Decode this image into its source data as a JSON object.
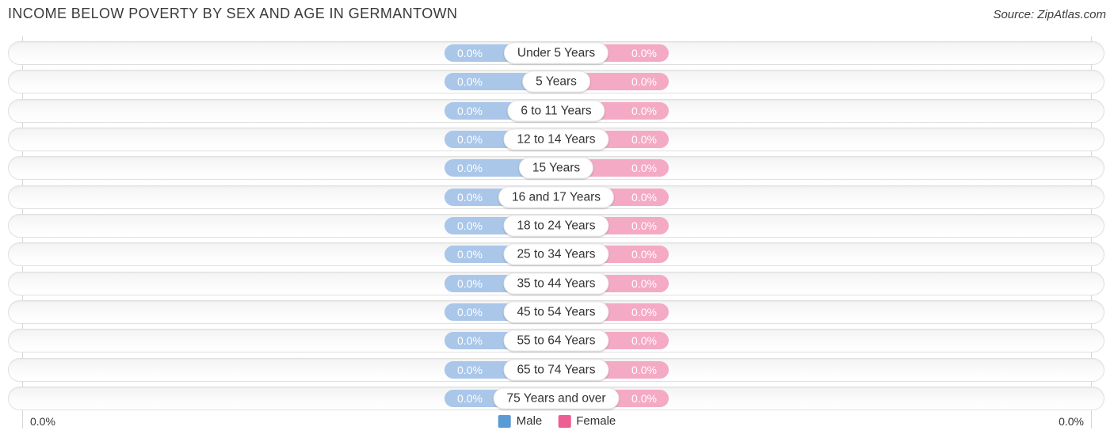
{
  "title": "INCOME BELOW POVERTY BY SEX AND AGE IN GERMANTOWN",
  "source": "Source: ZipAtlas.com",
  "axis": {
    "left_label": "0.0%",
    "right_label": "0.0%"
  },
  "legend": {
    "male_label": "Male",
    "female_label": "Female",
    "position": "bottom-center"
  },
  "colors": {
    "male_bar": "#aac7e9",
    "female_bar": "#f4aac4",
    "male_legend": "#5b9bd5",
    "female_legend": "#ec5f92",
    "value_text": "#ffffff",
    "label_text": "#333333"
  },
  "chart_data": {
    "type": "bar",
    "orientation": "horizontal-diverging",
    "title": "INCOME BELOW POVERTY BY SEX AND AGE IN GERMANTOWN",
    "xlabel": "",
    "ylabel": "",
    "xlim_left_label": "0.0%",
    "xlim_right_label": "0.0%",
    "grid": "two-vertical-gridlines",
    "legend_position": "bottom-center",
    "categories": [
      "Under 5 Years",
      "5 Years",
      "6 to 11 Years",
      "12 to 14 Years",
      "15 Years",
      "16 and 17 Years",
      "18 to 24 Years",
      "25 to 34 Years",
      "35 to 44 Years",
      "45 to 54 Years",
      "55 to 64 Years",
      "65 to 74 Years",
      "75 Years and over"
    ],
    "series": [
      {
        "name": "Male",
        "values": [
          0.0,
          0.0,
          0.0,
          0.0,
          0.0,
          0.0,
          0.0,
          0.0,
          0.0,
          0.0,
          0.0,
          0.0,
          0.0
        ],
        "labels": [
          "0.0%",
          "0.0%",
          "0.0%",
          "0.0%",
          "0.0%",
          "0.0%",
          "0.0%",
          "0.0%",
          "0.0%",
          "0.0%",
          "0.0%",
          "0.0%",
          "0.0%"
        ]
      },
      {
        "name": "Female",
        "values": [
          0.0,
          0.0,
          0.0,
          0.0,
          0.0,
          0.0,
          0.0,
          0.0,
          0.0,
          0.0,
          0.0,
          0.0,
          0.0
        ],
        "labels": [
          "0.0%",
          "0.0%",
          "0.0%",
          "0.0%",
          "0.0%",
          "0.0%",
          "0.0%",
          "0.0%",
          "0.0%",
          "0.0%",
          "0.0%",
          "0.0%",
          "0.0%"
        ]
      }
    ]
  }
}
